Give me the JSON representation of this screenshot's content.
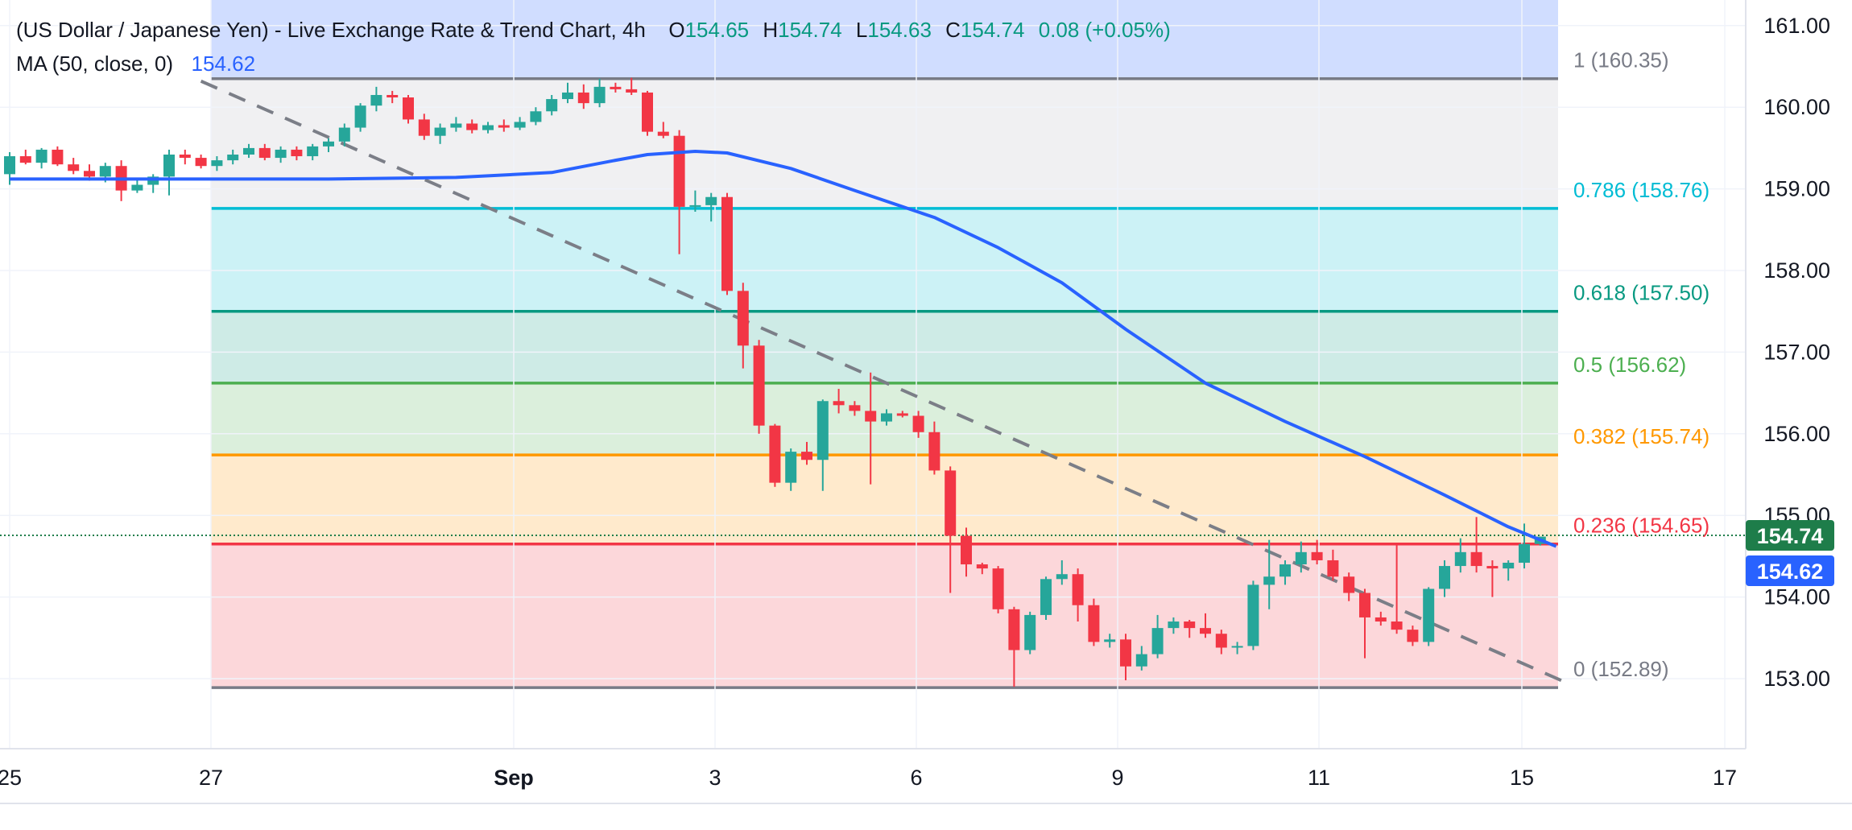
{
  "legend": {
    "title": "(US Dollar / Japanese Yen) - Live Exchange Rate & Trend Chart, 4h",
    "open_label": "O",
    "open": "154.65",
    "high_label": "H",
    "high": "154.74",
    "low_label": "L",
    "low": "154.63",
    "close_label": "C",
    "close": "154.74",
    "change": "0.08 (+0.05%)",
    "ma_label": "MA (50, close, 0)",
    "ma_value": "154.62"
  },
  "price_labels": {
    "last_price": "154.74",
    "ma_price": "154.62"
  },
  "colors": {
    "up": "#26a69a",
    "down": "#f23645",
    "ma": "#2962ff",
    "up_text": "#089981",
    "trendline": "#7b7e87",
    "last_price_bg": "#1e7d4a"
  },
  "chart_data": {
    "type": "candlestick",
    "title": "(US Dollar / Japanese Yen) - Live Exchange Rate & Trend Chart",
    "timeframe": "4h",
    "x_ticks": [
      "25",
      "27",
      "Sep",
      "3",
      "6",
      "9",
      "11",
      "15",
      "17"
    ],
    "y_ticks": [
      "153.00",
      "154.00",
      "155.00",
      "156.00",
      "157.00",
      "158.00",
      "159.00",
      "160.00",
      "161.00"
    ],
    "ylim": [
      152.2,
      161.3
    ],
    "fibonacci": [
      {
        "ratio": "1",
        "price": 160.35,
        "label": "1 (160.35)",
        "color": "#787b86",
        "fill": "#b2b5be"
      },
      {
        "ratio": "0.786",
        "price": 158.76,
        "label": "0.786 (158.76)",
        "color": "#00bcd4",
        "fill": "#00bcd4"
      },
      {
        "ratio": "0.618",
        "price": 157.5,
        "label": "0.618 (157.50)",
        "color": "#089981",
        "fill": "#089981"
      },
      {
        "ratio": "0.5",
        "price": 156.62,
        "label": "0.5 (156.62)",
        "color": "#4caf50",
        "fill": "#4caf50"
      },
      {
        "ratio": "0.382",
        "price": 155.74,
        "label": "0.382 (155.74)",
        "color": "#ff9800",
        "fill": "#ff9800"
      },
      {
        "ratio": "0.236",
        "price": 154.65,
        "label": "0.236 (154.65)",
        "color": "#f23645",
        "fill": "#f23645"
      },
      {
        "ratio": "0",
        "price": 152.89,
        "label": "0 (152.89)",
        "color": "#787b86",
        "fill": "#f23645"
      }
    ],
    "last_close": 154.74,
    "ma_last": 154.62,
    "candles": [
      {
        "o": 159.18,
        "h": 159.45,
        "l": 159.05,
        "c": 159.4
      },
      {
        "o": 159.4,
        "h": 159.48,
        "l": 159.3,
        "c": 159.32
      },
      {
        "o": 159.32,
        "h": 159.5,
        "l": 159.25,
        "c": 159.48
      },
      {
        "o": 159.48,
        "h": 159.52,
        "l": 159.28,
        "c": 159.3
      },
      {
        "o": 159.3,
        "h": 159.38,
        "l": 159.18,
        "c": 159.22
      },
      {
        "o": 159.22,
        "h": 159.3,
        "l": 159.1,
        "c": 159.15
      },
      {
        "o": 159.15,
        "h": 159.32,
        "l": 159.08,
        "c": 159.28
      },
      {
        "o": 159.28,
        "h": 159.35,
        "l": 158.85,
        "c": 158.98
      },
      {
        "o": 158.98,
        "h": 159.12,
        "l": 158.95,
        "c": 159.05
      },
      {
        "o": 159.05,
        "h": 159.18,
        "l": 158.95,
        "c": 159.15
      },
      {
        "o": 159.15,
        "h": 159.48,
        "l": 158.92,
        "c": 159.42
      },
      {
        "o": 159.42,
        "h": 159.48,
        "l": 159.3,
        "c": 159.38
      },
      {
        "o": 159.38,
        "h": 159.42,
        "l": 159.25,
        "c": 159.28
      },
      {
        "o": 159.28,
        "h": 159.4,
        "l": 159.22,
        "c": 159.35
      },
      {
        "o": 159.35,
        "h": 159.48,
        "l": 159.3,
        "c": 159.42
      },
      {
        "o": 159.42,
        "h": 159.55,
        "l": 159.38,
        "c": 159.5
      },
      {
        "o": 159.5,
        "h": 159.55,
        "l": 159.35,
        "c": 159.38
      },
      {
        "o": 159.38,
        "h": 159.52,
        "l": 159.32,
        "c": 159.48
      },
      {
        "o": 159.48,
        "h": 159.52,
        "l": 159.35,
        "c": 159.4
      },
      {
        "o": 159.4,
        "h": 159.55,
        "l": 159.35,
        "c": 159.52
      },
      {
        "o": 159.52,
        "h": 159.62,
        "l": 159.45,
        "c": 159.58
      },
      {
        "o": 159.58,
        "h": 159.8,
        "l": 159.52,
        "c": 159.75
      },
      {
        "o": 159.75,
        "h": 160.05,
        "l": 159.7,
        "c": 160.02
      },
      {
        "o": 160.02,
        "h": 160.25,
        "l": 159.95,
        "c": 160.15
      },
      {
        "o": 160.15,
        "h": 160.2,
        "l": 160.05,
        "c": 160.12
      },
      {
        "o": 160.12,
        "h": 160.15,
        "l": 159.8,
        "c": 159.85
      },
      {
        "o": 159.85,
        "h": 159.92,
        "l": 159.6,
        "c": 159.65
      },
      {
        "o": 159.65,
        "h": 159.8,
        "l": 159.55,
        "c": 159.75
      },
      {
        "o": 159.75,
        "h": 159.88,
        "l": 159.7,
        "c": 159.8
      },
      {
        "o": 159.8,
        "h": 159.85,
        "l": 159.68,
        "c": 159.72
      },
      {
        "o": 159.72,
        "h": 159.82,
        "l": 159.68,
        "c": 159.78
      },
      {
        "o": 159.78,
        "h": 159.85,
        "l": 159.7,
        "c": 159.75
      },
      {
        "o": 159.75,
        "h": 159.88,
        "l": 159.72,
        "c": 159.82
      },
      {
        "o": 159.82,
        "h": 160.0,
        "l": 159.78,
        "c": 159.95
      },
      {
        "o": 159.95,
        "h": 160.15,
        "l": 159.9,
        "c": 160.1
      },
      {
        "o": 160.1,
        "h": 160.3,
        "l": 160.05,
        "c": 160.18
      },
      {
        "o": 160.18,
        "h": 160.28,
        "l": 159.98,
        "c": 160.05
      },
      {
        "o": 160.05,
        "h": 160.35,
        "l": 160.0,
        "c": 160.25
      },
      {
        "o": 160.25,
        "h": 160.3,
        "l": 160.18,
        "c": 160.22
      },
      {
        "o": 160.22,
        "h": 160.36,
        "l": 160.15,
        "c": 160.18
      },
      {
        "o": 160.18,
        "h": 160.2,
        "l": 159.65,
        "c": 159.7
      },
      {
        "o": 159.7,
        "h": 159.82,
        "l": 159.62,
        "c": 159.65
      },
      {
        "o": 159.65,
        "h": 159.72,
        "l": 158.2,
        "c": 158.78
      },
      {
        "o": 158.78,
        "h": 158.98,
        "l": 158.72,
        "c": 158.8
      },
      {
        "o": 158.8,
        "h": 158.95,
        "l": 158.6,
        "c": 158.9
      },
      {
        "o": 158.9,
        "h": 158.95,
        "l": 157.7,
        "c": 157.75
      },
      {
        "o": 157.75,
        "h": 157.85,
        "l": 156.8,
        "c": 157.08
      },
      {
        "o": 157.08,
        "h": 157.15,
        "l": 156.0,
        "c": 156.1
      },
      {
        "o": 156.1,
        "h": 156.12,
        "l": 155.35,
        "c": 155.4
      },
      {
        "o": 155.4,
        "h": 155.82,
        "l": 155.3,
        "c": 155.78
      },
      {
        "o": 155.78,
        "h": 155.9,
        "l": 155.62,
        "c": 155.68
      },
      {
        "o": 155.68,
        "h": 156.42,
        "l": 155.3,
        "c": 156.4
      },
      {
        "o": 156.4,
        "h": 156.55,
        "l": 156.25,
        "c": 156.35
      },
      {
        "o": 156.35,
        "h": 156.4,
        "l": 156.22,
        "c": 156.28
      },
      {
        "o": 156.28,
        "h": 156.75,
        "l": 155.38,
        "c": 156.15
      },
      {
        "o": 156.15,
        "h": 156.3,
        "l": 156.1,
        "c": 156.25
      },
      {
        "o": 156.25,
        "h": 156.28,
        "l": 156.2,
        "c": 156.22
      },
      {
        "o": 156.22,
        "h": 156.28,
        "l": 155.95,
        "c": 156.02
      },
      {
        "o": 156.02,
        "h": 156.15,
        "l": 155.5,
        "c": 155.55
      },
      {
        "o": 155.55,
        "h": 155.6,
        "l": 154.05,
        "c": 154.75
      },
      {
        "o": 154.75,
        "h": 154.85,
        "l": 154.25,
        "c": 154.4
      },
      {
        "o": 154.4,
        "h": 154.42,
        "l": 154.28,
        "c": 154.35
      },
      {
        "o": 154.35,
        "h": 154.38,
        "l": 153.8,
        "c": 153.85
      },
      {
        "o": 153.85,
        "h": 153.88,
        "l": 152.9,
        "c": 153.35
      },
      {
        "o": 153.35,
        "h": 153.82,
        "l": 153.3,
        "c": 153.78
      },
      {
        "o": 153.78,
        "h": 154.25,
        "l": 153.72,
        "c": 154.22
      },
      {
        "o": 154.22,
        "h": 154.45,
        "l": 154.15,
        "c": 154.28
      },
      {
        "o": 154.28,
        "h": 154.35,
        "l": 153.7,
        "c": 153.9
      },
      {
        "o": 153.9,
        "h": 153.98,
        "l": 153.4,
        "c": 153.45
      },
      {
        "o": 153.45,
        "h": 153.55,
        "l": 153.38,
        "c": 153.48
      },
      {
        "o": 153.48,
        "h": 153.55,
        "l": 152.98,
        "c": 153.15
      },
      {
        "o": 153.15,
        "h": 153.4,
        "l": 153.1,
        "c": 153.3
      },
      {
        "o": 153.3,
        "h": 153.78,
        "l": 153.25,
        "c": 153.62
      },
      {
        "o": 153.62,
        "h": 153.75,
        "l": 153.55,
        "c": 153.7
      },
      {
        "o": 153.7,
        "h": 153.72,
        "l": 153.5,
        "c": 153.62
      },
      {
        "o": 153.62,
        "h": 153.8,
        "l": 153.5,
        "c": 153.55
      },
      {
        "o": 153.55,
        "h": 153.6,
        "l": 153.3,
        "c": 153.38
      },
      {
        "o": 153.38,
        "h": 153.45,
        "l": 153.3,
        "c": 153.4
      },
      {
        "o": 153.4,
        "h": 154.2,
        "l": 153.35,
        "c": 154.15
      },
      {
        "o": 154.15,
        "h": 154.7,
        "l": 153.85,
        "c": 154.25
      },
      {
        "o": 154.25,
        "h": 154.45,
        "l": 154.15,
        "c": 154.4
      },
      {
        "o": 154.4,
        "h": 154.68,
        "l": 154.3,
        "c": 154.55
      },
      {
        "o": 154.55,
        "h": 154.7,
        "l": 154.4,
        "c": 154.45
      },
      {
        "o": 154.45,
        "h": 154.58,
        "l": 154.2,
        "c": 154.25
      },
      {
        "o": 154.25,
        "h": 154.3,
        "l": 153.95,
        "c": 154.05
      },
      {
        "o": 154.05,
        "h": 154.1,
        "l": 153.25,
        "c": 153.75
      },
      {
        "o": 153.75,
        "h": 153.82,
        "l": 153.65,
        "c": 153.7
      },
      {
        "o": 153.7,
        "h": 154.65,
        "l": 153.55,
        "c": 153.6
      },
      {
        "o": 153.6,
        "h": 153.65,
        "l": 153.4,
        "c": 153.45
      },
      {
        "o": 153.45,
        "h": 154.12,
        "l": 153.4,
        "c": 154.1
      },
      {
        "o": 154.1,
        "h": 154.45,
        "l": 154.0,
        "c": 154.38
      },
      {
        "o": 154.38,
        "h": 154.72,
        "l": 154.3,
        "c": 154.55
      },
      {
        "o": 154.55,
        "h": 154.98,
        "l": 154.3,
        "c": 154.38
      },
      {
        "o": 154.38,
        "h": 154.45,
        "l": 154.0,
        "c": 154.35
      },
      {
        "o": 154.35,
        "h": 154.45,
        "l": 154.2,
        "c": 154.42
      },
      {
        "o": 154.42,
        "h": 154.9,
        "l": 154.35,
        "c": 154.65
      },
      {
        "o": 154.65,
        "h": 154.74,
        "l": 154.63,
        "c": 154.74
      }
    ],
    "ma_series": [
      {
        "x": 0,
        "y": 159.12
      },
      {
        "x": 10,
        "y": 159.12
      },
      {
        "x": 20,
        "y": 159.12
      },
      {
        "x": 28,
        "y": 159.14
      },
      {
        "x": 34,
        "y": 159.2
      },
      {
        "x": 38,
        "y": 159.35
      },
      {
        "x": 40,
        "y": 159.42
      },
      {
        "x": 43,
        "y": 159.46
      },
      {
        "x": 45,
        "y": 159.44
      },
      {
        "x": 49,
        "y": 159.25
      },
      {
        "x": 53,
        "y": 158.98
      },
      {
        "x": 58,
        "y": 158.65
      },
      {
        "x": 62,
        "y": 158.28
      },
      {
        "x": 66,
        "y": 157.85
      },
      {
        "x": 70,
        "y": 157.28
      },
      {
        "x": 75,
        "y": 156.62
      },
      {
        "x": 80,
        "y": 156.15
      },
      {
        "x": 85,
        "y": 155.72
      },
      {
        "x": 90,
        "y": 155.25
      },
      {
        "x": 94,
        "y": 154.86
      },
      {
        "x": 97,
        "y": 154.62
      }
    ],
    "trendline": [
      {
        "x": 12,
        "y": 160.32
      },
      {
        "x": 98,
        "y": 152.92
      }
    ]
  }
}
